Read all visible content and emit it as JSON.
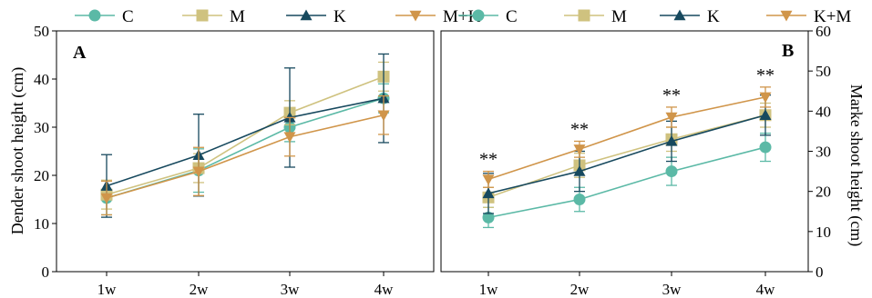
{
  "chart_data": [
    {
      "panel": "A",
      "type": "line",
      "categories": [
        "1w",
        "2w",
        "3w",
        "4w"
      ],
      "ylabel": "Dender shoot height (cm)",
      "xlabel": "",
      "ylim": [
        0,
        50
      ],
      "yticks": [
        0,
        10,
        20,
        30,
        40,
        50
      ],
      "legend_position": "top",
      "series": [
        {
          "name": "C",
          "color": "#5bb9a6",
          "marker": "circle",
          "values": [
            15.3,
            21.0,
            30.0,
            36.0
          ],
          "err": [
            3.5,
            4.5,
            3.0,
            3.0
          ]
        },
        {
          "name": "M",
          "color": "#cfc27f",
          "marker": "square",
          "values": [
            16.0,
            21.5,
            33.0,
            40.5
          ],
          "err": [
            3.0,
            3.0,
            2.5,
            3.0
          ]
        },
        {
          "name": "K",
          "color": "#17495e",
          "marker": "triangle",
          "values": [
            17.8,
            24.2,
            32.0,
            36.0
          ],
          "err": [
            6.5,
            8.5,
            10.3,
            9.2
          ]
        },
        {
          "name": "M+K",
          "color": "#d0954a",
          "marker": "triangle-down",
          "values": [
            15.3,
            20.8,
            28.0,
            32.5
          ],
          "err": [
            3.5,
            5.0,
            4.0,
            4.0
          ]
        }
      ]
    },
    {
      "panel": "B",
      "type": "line",
      "categories": [
        "1w",
        "2w",
        "3w",
        "4w"
      ],
      "ylabel": "Marke shoot height (cm)",
      "xlabel": "",
      "ylim": [
        0,
        60
      ],
      "yticks": [
        0,
        10,
        20,
        30,
        40,
        50,
        60
      ],
      "legend_position": "top",
      "annotations": [
        "**",
        "**",
        "**",
        "**"
      ],
      "series": [
        {
          "name": "C",
          "color": "#5bb9a6",
          "marker": "circle",
          "values": [
            13.5,
            18.0,
            25.0,
            31.0
          ],
          "err": [
            2.5,
            3.0,
            3.5,
            3.5
          ]
        },
        {
          "name": "M",
          "color": "#cfc27f",
          "marker": "square",
          "values": [
            18.5,
            26.5,
            33.0,
            39.0
          ],
          "err": [
            2.5,
            3.0,
            3.0,
            3.0
          ]
        },
        {
          "name": "K",
          "color": "#17495e",
          "marker": "triangle",
          "values": [
            19.5,
            25.0,
            32.5,
            39.0
          ],
          "err": [
            5.0,
            5.0,
            5.0,
            5.0
          ]
        },
        {
          "name": "K+M",
          "color": "#d0954a",
          "marker": "triangle-down",
          "values": [
            23.0,
            30.5,
            38.5,
            43.5
          ],
          "err": [
            2.0,
            2.0,
            2.5,
            2.5
          ]
        }
      ]
    }
  ]
}
